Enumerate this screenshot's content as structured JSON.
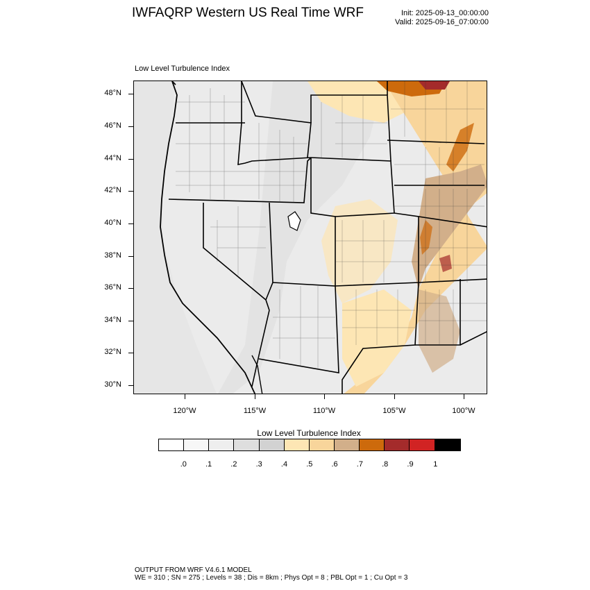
{
  "header": {
    "title": "IWFAQRP Western US Real Time WRF",
    "init": "Init: 2025-09-13_00:00:00",
    "valid": "Valid: 2025-09-16_07:00:00"
  },
  "plot": {
    "label": "Low Level Turbulence Index",
    "lat_labels": [
      "48°N",
      "46°N",
      "44°N",
      "42°N",
      "40°N",
      "38°N",
      "36°N",
      "34°N",
      "32°N",
      "30°N"
    ],
    "lon_labels": [
      "120°W",
      "115°W",
      "110°W",
      "105°W",
      "100°W"
    ]
  },
  "colorbar": {
    "title": "Low Level Turbulence Index",
    "colors": [
      "#ffffff",
      "#f7f7f7",
      "#eeeeee",
      "#dedede",
      "#d2d2d2",
      "#fde6b4",
      "#f8d59b",
      "#d2af8a",
      "#cd6a0c",
      "#a42b2b",
      "#d12323",
      "#000000"
    ],
    "labels": [
      ".0",
      ".1",
      ".2",
      ".3",
      ".4",
      ".5",
      ".6",
      ".7",
      ".8",
      ".9",
      "1"
    ]
  },
  "footer": {
    "line1": "OUTPUT FROM WRF V4.6.1 MODEL",
    "line2": "WE = 310 ; SN = 275 ; Levels = 38 ; Dis = 8km ; Phys Opt = 8 ; PBL Opt = 1 ; Cu Opt = 3"
  }
}
